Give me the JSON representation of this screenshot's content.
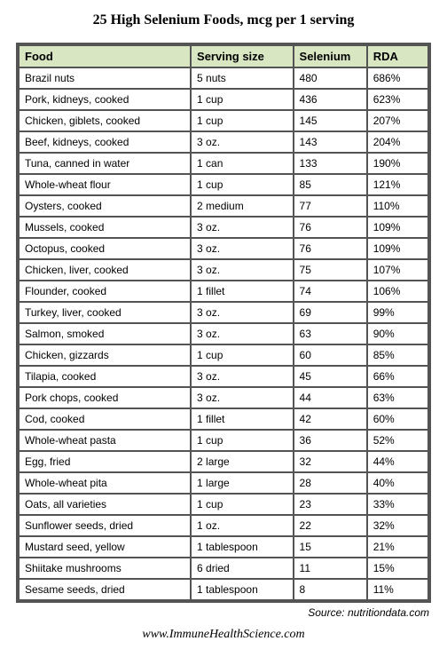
{
  "title": "25 High Selenium Foods, mcg per 1 serving",
  "columns": [
    "Food",
    "Serving size",
    "Selenium",
    "RDA"
  ],
  "rows": [
    [
      "Brazil nuts",
      "5 nuts",
      "480",
      "686%"
    ],
    [
      "Pork, kidneys, cooked",
      "1 cup",
      "436",
      "623%"
    ],
    [
      "Chicken, giblets, cooked",
      "1 cup",
      "145",
      "207%"
    ],
    [
      "Beef, kidneys, cooked",
      "3 oz.",
      "143",
      "204%"
    ],
    [
      "Tuna, canned in water",
      "1 can",
      "133",
      "190%"
    ],
    [
      "Whole-wheat flour",
      "1 cup",
      "85",
      "121%"
    ],
    [
      "Oysters, cooked",
      "2 medium",
      "77",
      "110%"
    ],
    [
      "Mussels, cooked",
      "3 oz.",
      "76",
      "109%"
    ],
    [
      "Octopus, cooked",
      "3 oz.",
      "76",
      "109%"
    ],
    [
      "Chicken, liver, cooked",
      "3 oz.",
      "75",
      "107%"
    ],
    [
      "Flounder, cooked",
      "1 fillet",
      "74",
      "106%"
    ],
    [
      "Turkey, liver, cooked",
      "3 oz.",
      "69",
      "99%"
    ],
    [
      "Salmon, smoked",
      "3 oz.",
      "63",
      "90%"
    ],
    [
      "Chicken, gizzards",
      "1 cup",
      "60",
      "85%"
    ],
    [
      "Tilapia, cooked",
      "3 oz.",
      "45",
      "66%"
    ],
    [
      "Pork chops, cooked",
      "3 oz.",
      "44",
      "63%"
    ],
    [
      "Cod, cooked",
      "1 fillet",
      "42",
      "60%"
    ],
    [
      "Whole-wheat pasta",
      "1 cup",
      "36",
      "52%"
    ],
    [
      "Egg, fried",
      "2 large",
      "32",
      "44%"
    ],
    [
      "Whole-wheat pita",
      "1 large",
      "28",
      "40%"
    ],
    [
      "Oats, all varieties",
      "1 cup",
      "23",
      "33%"
    ],
    [
      "Sunflower seeds, dried",
      "1 oz.",
      "22",
      "32%"
    ],
    [
      "Mustard seed, yellow",
      "1 tablespoon",
      "15",
      "21%"
    ],
    [
      "Shiitake mushrooms",
      "6 dried",
      "11",
      "15%"
    ],
    [
      "Sesame seeds, dried",
      "1 tablespoon",
      "8",
      "11%"
    ]
  ],
  "source": "Source: nutritiondata.com",
  "site": "www.ImmuneHealthScience.com",
  "styling": {
    "header_bg": "#d9e6c2",
    "border_color": "#545454",
    "outer_border_width": 3,
    "inner_border_width": 1,
    "title_font": "Georgia",
    "body_font": "Verdana",
    "title_fontsize": 16,
    "header_fontsize": 13,
    "cell_fontsize": 12,
    "col_widths_pct": [
      42,
      25,
      18,
      15
    ]
  }
}
